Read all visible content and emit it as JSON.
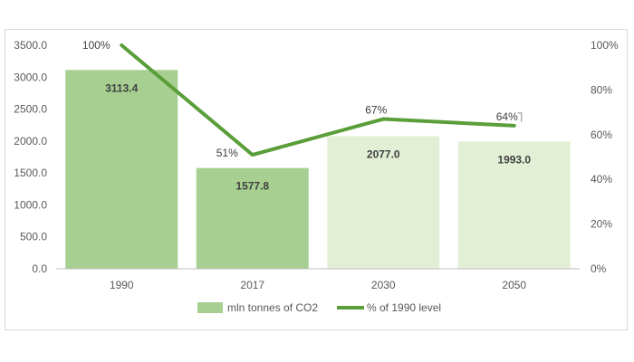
{
  "chart_data": {
    "type": "bar",
    "categories": [
      "1990",
      "2017",
      "2030",
      "2050"
    ],
    "series": [
      {
        "name": "mln tonnes of CO2",
        "axis": "left",
        "type": "bar",
        "values": [
          3113.4,
          1577.8,
          2077.0,
          1993.0
        ],
        "labels": [
          "3113.4",
          "1577.8",
          "2077.0",
          "1993.0"
        ],
        "colors": [
          "#a7cf91",
          "#a7cf91",
          "#e3efd5",
          "#e3efd5"
        ]
      },
      {
        "name": "% of 1990 level",
        "axis": "right",
        "type": "line",
        "values": [
          100,
          51,
          67,
          64
        ],
        "labels": [
          "100%",
          "51%",
          "67%",
          "64%"
        ],
        "color": "#5a9e3a"
      }
    ],
    "y_left": {
      "lim": [
        0,
        3500
      ],
      "ticks": [
        "0.0",
        "500.0",
        "1000.0",
        "1500.0",
        "2000.0",
        "2500.0",
        "3000.0",
        "3500.0"
      ]
    },
    "y_right": {
      "lim": [
        0,
        100
      ],
      "ticks": [
        "0%",
        "20%",
        "40%",
        "60%",
        "80%",
        "100%"
      ]
    },
    "grid": false,
    "legend": "bottom"
  }
}
